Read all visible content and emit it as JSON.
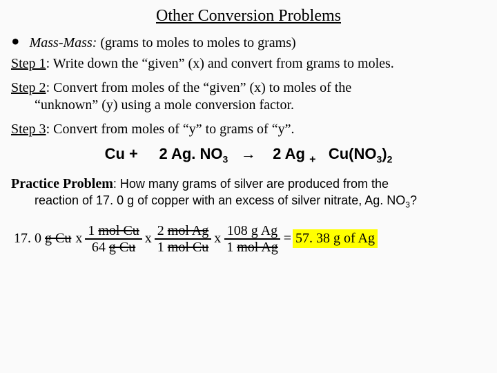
{
  "title": "Other Conversion Problems",
  "bullet": {
    "label_italic": "Mass-Mass:",
    "label_rest": "  (grams to moles to moles to grams)"
  },
  "step1": {
    "lead": "Step 1",
    "text": ": Write down the “given” (x) and convert from grams to moles."
  },
  "step2": {
    "lead": "Step 2",
    "text_a": ": Convert from moles of the “given” (x) to moles of the",
    "text_b": "“unknown” (y) using a mole conversion factor."
  },
  "step3": {
    "lead": "Step 3",
    "text": ":  Convert from moles of “y” to grams of “y”."
  },
  "equation": {
    "r1": "Cu  +",
    "r2a": "2 Ag. NO",
    "r2sub": "3",
    "arrow": "→",
    "p1": "2 Ag",
    "plus": "+",
    "p2a": "Cu(NO",
    "p2sub1": "3",
    "p2close": ")",
    "p2sub2": "2"
  },
  "practice": {
    "head": "Practice Problem",
    "lead": ":  How many grams of silver are produced from the",
    "cont_a": "reaction of 17. 0 g of copper with an excess of silver nitrate, Ag. NO",
    "cont_sub": "3",
    "cont_b": "?"
  },
  "calc": {
    "start_val": "17. 0 ",
    "start_unit": "g Cu",
    "x1": "x",
    "f1_num_a": "1 ",
    "f1_num_unit": "mol Cu",
    "f1_den_a": "64 ",
    "f1_den_unit": "g Cu",
    "x2": "x",
    "f2_num_a": "2 ",
    "f2_num_unit": "mol Ag",
    "f2_den_a": "1 ",
    "f2_den_unit": "mol Cu",
    "x3": "x",
    "f3_num": "108 g Ag",
    "f3_den_a": "1 ",
    "f3_den_unit": "mol Ag",
    "eq": "=",
    "answer": "57. 38 g of Ag"
  },
  "colors": {
    "background": "#fafafa",
    "text": "#000000",
    "highlight": "#ffff00"
  }
}
